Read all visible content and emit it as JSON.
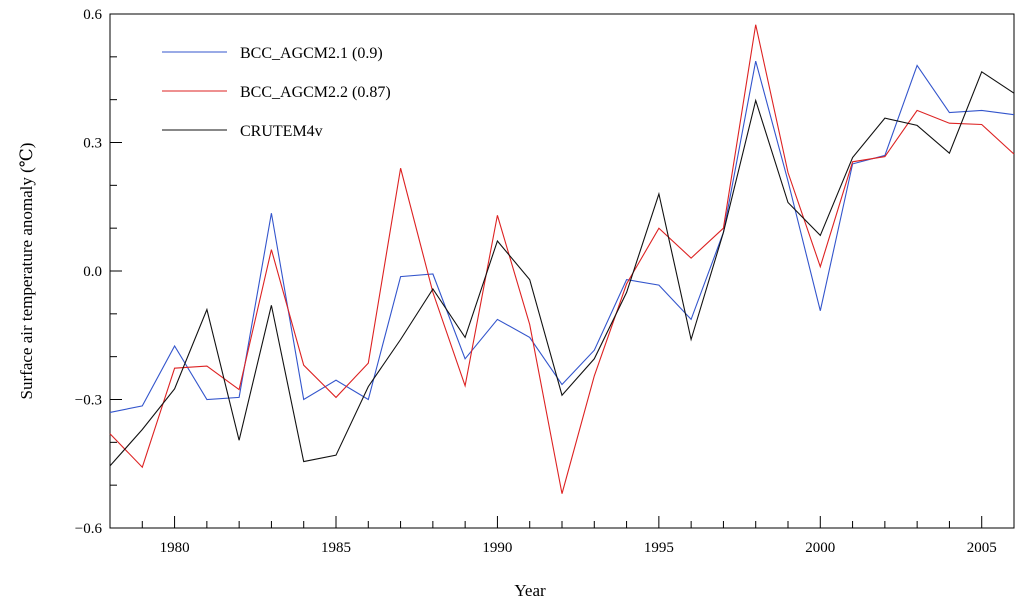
{
  "chart_data": {
    "type": "line",
    "xlabel": "Year",
    "ylabel": "Surface air temperature anomaly (℃)",
    "xlim": [
      1978,
      2006
    ],
    "ylim": [
      -0.6,
      0.6
    ],
    "x_major_ticks": [
      1980,
      1985,
      1990,
      1995,
      2000,
      2005
    ],
    "x_tick_labels": [
      "1980",
      "1985",
      "1990",
      "1995",
      "2000",
      "2005"
    ],
    "y_major_ticks": [
      -0.6,
      -0.3,
      0.0,
      0.3,
      0.6
    ],
    "y_tick_labels": [
      "−0.6",
      "−0.3",
      "0.0",
      "0.3",
      "0.6"
    ],
    "grid": false,
    "legend_position": "top-left",
    "x": [
      1978,
      1979,
      1980,
      1981,
      1982,
      1983,
      1984,
      1985,
      1986,
      1987,
      1988,
      1989,
      1990,
      1991,
      1992,
      1993,
      1994,
      1995,
      1996,
      1997,
      1998,
      1999,
      2000,
      2001,
      2002,
      2003,
      2004,
      2005,
      2006
    ],
    "series": [
      {
        "name": "BCC_AGCM2.1 (0.9)",
        "color": "#3355cc",
        "values": [
          -0.33,
          -0.315,
          -0.175,
          -0.3,
          -0.295,
          0.135,
          -0.3,
          -0.255,
          -0.3,
          -0.013,
          -0.007,
          -0.205,
          -0.113,
          -0.155,
          -0.265,
          -0.185,
          -0.02,
          -0.033,
          -0.113,
          0.09,
          0.49,
          0.21,
          -0.093,
          0.25,
          0.27,
          0.48,
          0.37,
          0.375,
          0.365
        ]
      },
      {
        "name": "BCC_AGCM2.2 (0.87)",
        "color": "#dd2222",
        "values": [
          -0.38,
          -0.458,
          -0.227,
          -0.222,
          -0.277,
          0.05,
          -0.22,
          -0.295,
          -0.215,
          0.24,
          -0.05,
          -0.268,
          0.13,
          -0.125,
          -0.52,
          -0.245,
          -0.03,
          0.1,
          0.03,
          0.1,
          0.575,
          0.23,
          0.01,
          0.255,
          0.267,
          0.375,
          0.345,
          0.342,
          0.273
        ]
      },
      {
        "name": "CRUTEM4v",
        "color": "#111111",
        "values": [
          -0.455,
          -0.37,
          -0.275,
          -0.09,
          -0.395,
          -0.08,
          -0.445,
          -0.43,
          -0.27,
          -0.16,
          -0.042,
          -0.155,
          0.07,
          -0.02,
          -0.29,
          -0.205,
          -0.05,
          0.18,
          -0.16,
          0.09,
          0.398,
          0.16,
          0.083,
          0.265,
          0.357,
          0.34,
          0.275,
          0.465,
          0.415
        ]
      }
    ]
  }
}
